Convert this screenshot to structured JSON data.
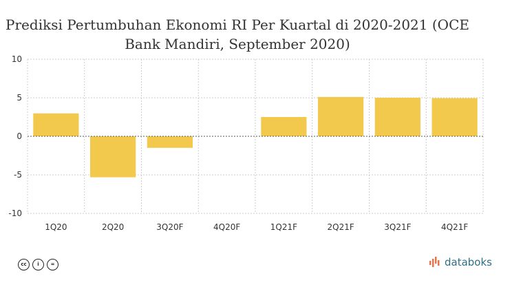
{
  "title_line1": "Prediksi Pertumbuhan Ekonomi RI Per Kuartal di 2020-2021 (OCE",
  "title_line2": "Bank Mandiri, September 2020)",
  "brand": "databoks",
  "colors": {
    "bar": "#F2C94C",
    "grid": "#cccccc",
    "zero_line": "#555555",
    "brand": "#2f6f86"
  },
  "icons": [
    "cc-icon",
    "by-icon",
    "nd-icon",
    "databoks-logo-icon"
  ],
  "chart_data": {
    "type": "bar",
    "title": "Prediksi Pertumbuhan Ekonomi RI Per Kuartal di 2020-2021 (OCE Bank Mandiri, September 2020)",
    "categories": [
      "1Q20",
      "2Q20",
      "3Q20F",
      "4Q20F",
      "1Q21F",
      "2Q21F",
      "3Q21F",
      "4Q21F"
    ],
    "values": [
      2.97,
      -5.32,
      -1.5,
      0,
      2.5,
      5.1,
      5.0,
      4.95
    ],
    "yticks": [
      10,
      5,
      0,
      -5,
      -10
    ],
    "ylim": [
      -10,
      10
    ],
    "xlabel": "",
    "ylabel": "",
    "grid": true,
    "legend": "none"
  }
}
